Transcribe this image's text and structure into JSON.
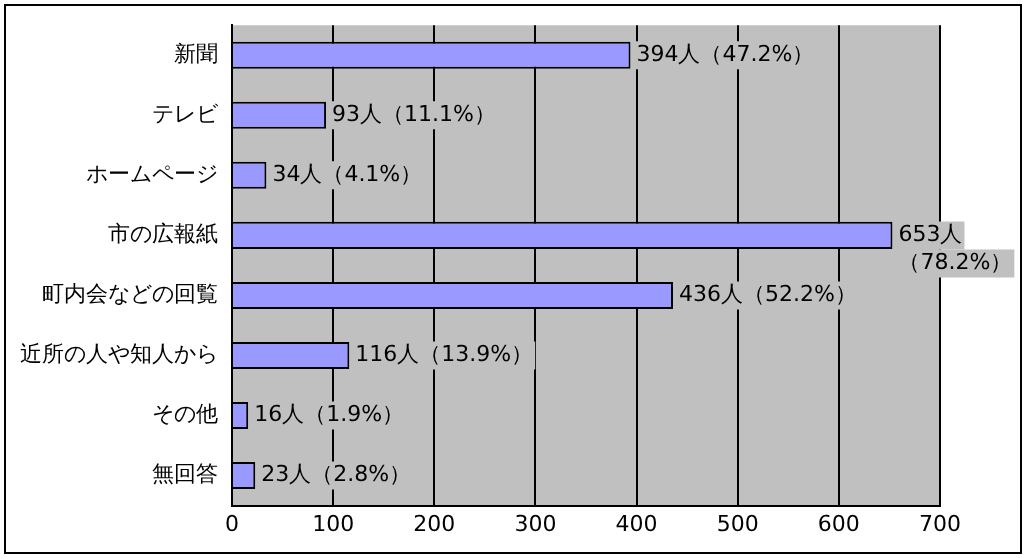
{
  "chart_data": {
    "type": "bar",
    "orientation": "horizontal",
    "categories": [
      "新聞",
      "テレビ",
      "ホームページ",
      "市の広報紙",
      "町内会などの回覧",
      "近所の人や知人から",
      "その他",
      "無回答"
    ],
    "values": [
      394,
      93,
      34,
      653,
      436,
      116,
      16,
      23
    ],
    "value_labels": [
      "394人（47.2%）",
      "93人（11.1%）",
      "34人（4.1%）",
      "653人（78.2%）",
      "436人（52.2%）",
      "116人（13.9%）",
      "16人（1.9%）",
      "23人（2.8%）"
    ],
    "color": "#9999ff",
    "xlim": [
      0,
      700
    ],
    "xticks": [
      0,
      100,
      200,
      300,
      400,
      500,
      600,
      700
    ],
    "grid": "x",
    "legend": false
  }
}
